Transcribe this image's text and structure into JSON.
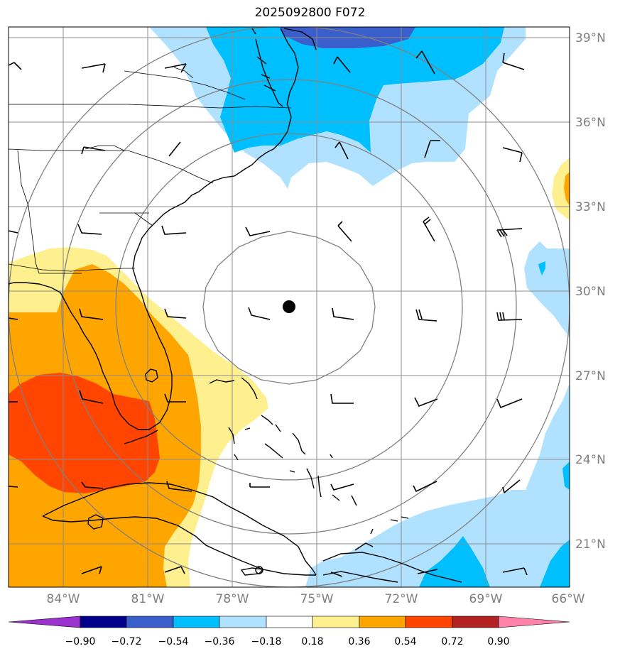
{
  "title": "2025092800 F072",
  "colors": {
    "neg090": "#9a32cd",
    "neg072": "#00008b",
    "neg054": "#3a5fcd",
    "neg036": "#00bfff",
    "neg018": "#b0e2ff",
    "zero": "#ffffff",
    "pos018": "#fff08f",
    "pos036": "#ffa500",
    "pos054": "#ff4500",
    "pos072": "#b22222",
    "pos090": "#ff82ab",
    "grid": "#8c8c8c",
    "coast": "#000000"
  },
  "lat_labels": [
    "39°N",
    "36°N",
    "33°N",
    "30°N",
    "27°N",
    "24°N",
    "21°N"
  ],
  "lon_labels": [
    "84°W",
    "81°W",
    "78°W",
    "75°W",
    "72°W",
    "69°W",
    "66°W"
  ],
  "colorbar_labels": [
    "−0.90",
    "−0.72",
    "−0.54",
    "−0.36",
    "−0.18",
    "0.18",
    "0.36",
    "0.54",
    "0.72",
    "0.90"
  ],
  "storm_center": {
    "lat": 30.0,
    "lon": -75.9
  }
}
